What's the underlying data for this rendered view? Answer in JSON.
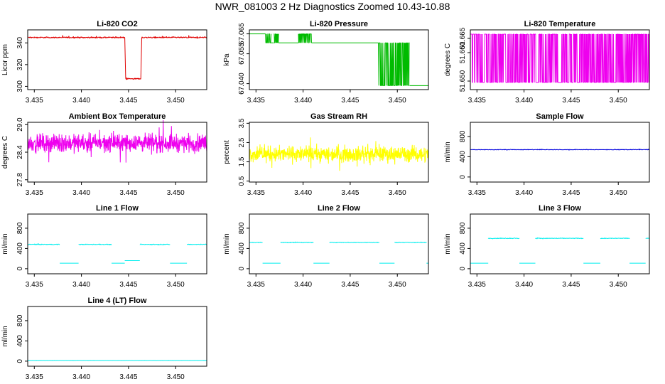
{
  "title": "NWR_081003  2 Hz Diagnostics Zoomed 10.43-10.88",
  "x_range": [
    3.4343,
    3.4533
  ],
  "x_ticks": [
    "3.435",
    "3.440",
    "3.445",
    "3.450"
  ],
  "chart_data": [
    {
      "type": "line",
      "title": "Li-820 CO2",
      "ylabel": "Licor ppm",
      "color": "#e00000",
      "ylim": [
        297,
        352
      ],
      "yticks": [
        300,
        320,
        340
      ],
      "ytick_labels": [
        "300",
        "320",
        "340"
      ],
      "segments": [
        {
          "x": [
            3.4343,
            3.4446
          ],
          "y": 345,
          "noise": 1
        },
        {
          "x": [
            3.4446,
            3.4447
          ],
          "y": 345,
          "to": 307
        },
        {
          "x": [
            3.4447,
            3.4463
          ],
          "y": 307,
          "noise": 1
        },
        {
          "x": [
            3.4463,
            3.4464
          ],
          "y": 307,
          "to": 345
        },
        {
          "x": [
            3.4464,
            3.4533
          ],
          "y": 345,
          "noise": 1
        }
      ]
    },
    {
      "type": "line",
      "title": "Li-820 Pressure",
      "ylabel": "kPa",
      "color": "#00bb00",
      "ylim": [
        67.037,
        67.067
      ],
      "yticks": [
        67.04,
        67.055,
        67.065
      ],
      "ytick_labels": [
        "67.040",
        "67.055",
        "67.065"
      ],
      "segments": [
        {
          "x": [
            3.4343,
            3.4359
          ],
          "y": 67.065
        },
        {
          "x": [
            3.4359,
            3.4366
          ],
          "y": 67.065,
          "alt": 67.0605
        },
        {
          "x": [
            3.4366,
            3.4369
          ],
          "y": 67.0605
        },
        {
          "x": [
            3.4369,
            3.4374
          ],
          "y": 67.065,
          "alt": 67.0605
        },
        {
          "x": [
            3.4374,
            3.4395
          ],
          "y": 67.0605
        },
        {
          "x": [
            3.4395,
            3.4409
          ],
          "y": 67.065,
          "alt": 67.0605
        },
        {
          "x": [
            3.4409,
            3.448
          ],
          "y": 67.0605
        },
        {
          "x": [
            3.448,
            3.4513
          ],
          "y": 67.0605,
          "alt": 67.039
        },
        {
          "x": [
            3.4513,
            3.4533
          ],
          "y": 67.039
        }
      ]
    },
    {
      "type": "line",
      "title": "Li-820 Temperature",
      "ylabel": "degrees C",
      "color": "#ee00ee",
      "ylim": [
        51.647,
        51.668
      ],
      "yticks": [
        51.65,
        51.66,
        51.665
      ],
      "ytick_labels": [
        "51.650",
        "51.660",
        "51.665"
      ],
      "segments": [
        {
          "x": [
            3.4343,
            3.4533
          ],
          "y": 51.6665,
          "alt": 51.6495
        }
      ]
    },
    {
      "type": "line",
      "title": "Ambient Box Temperature",
      "ylabel": "degrees C",
      "color": "#ee00ee",
      "ylim": [
        27.75,
        29.05
      ],
      "yticks": [
        27.8,
        28.4,
        29.0
      ],
      "ytick_labels": [
        "27.8",
        "28.4",
        "29.0"
      ],
      "segments": [
        {
          "x": [
            3.4343,
            3.4533
          ],
          "y": 28.6,
          "noise": 0.28
        }
      ]
    },
    {
      "type": "line",
      "title": "Gas Stream RH",
      "ylabel": "percent",
      "color": "#ffff00",
      "ylim": [
        0.45,
        3.55
      ],
      "yticks": [
        0.5,
        1.5,
        2.5,
        3.5
      ],
      "ytick_labels": [
        "0.5",
        "1.5",
        "2.5",
        "3.5"
      ],
      "segments": [
        {
          "x": [
            3.4343,
            3.4533
          ],
          "y": 1.9,
          "noise": 0.6
        }
      ]
    },
    {
      "type": "line",
      "title": "Sample Flow",
      "ylabel": "ml/min",
      "color": "#0000dd",
      "ylim": [
        -100,
        1080
      ],
      "yticks": [
        0,
        400,
        800
      ],
      "ytick_labels": [
        "0",
        "400",
        "800"
      ],
      "segments": [
        {
          "x": [
            3.4343,
            3.4533
          ],
          "y": 540,
          "noise": 10
        }
      ]
    },
    {
      "type": "line",
      "title": "Line 1 Flow",
      "ylabel": "ml/min",
      "color": "#00eeee",
      "ylim": [
        -100,
        1080
      ],
      "yticks": [
        0,
        400,
        800
      ],
      "ytick_labels": [
        "0",
        "400",
        "800"
      ],
      "segments": [
        {
          "x": [
            3.4343,
            3.4377
          ],
          "y": 480,
          "noise": 12
        },
        {
          "x": [
            3.4377,
            3.4397
          ],
          "y": 110
        },
        {
          "x": [
            3.4397,
            3.4432
          ],
          "y": 480,
          "noise": 12
        },
        {
          "x": [
            3.4432,
            3.4446
          ],
          "y": 110
        },
        {
          "x": [
            3.4446,
            3.4462
          ],
          "y": 160
        },
        {
          "x": [
            3.4462,
            3.4494
          ],
          "y": 480,
          "noise": 12
        },
        {
          "x": [
            3.4494,
            3.4512
          ],
          "y": 110
        },
        {
          "x": [
            3.4512,
            3.4533
          ],
          "y": 480,
          "noise": 12
        }
      ]
    },
    {
      "type": "line",
      "title": "Line 2 Flow",
      "ylabel": "ml/min",
      "color": "#00eeee",
      "ylim": [
        -100,
        1080
      ],
      "yticks": [
        0,
        400,
        800
      ],
      "ytick_labels": [
        "0",
        "400",
        "800"
      ],
      "segments": [
        {
          "x": [
            3.4343,
            3.4357
          ],
          "y": 520,
          "noise": 12
        },
        {
          "x": [
            3.4357,
            3.4376
          ],
          "y": 110
        },
        {
          "x": [
            3.4376,
            3.4411
          ],
          "y": 520,
          "noise": 12
        },
        {
          "x": [
            3.4411,
            3.4428
          ],
          "y": 110
        },
        {
          "x": [
            3.4428,
            3.4481
          ],
          "y": 520,
          "noise": 12
        },
        {
          "x": [
            3.4481,
            3.4497
          ],
          "y": 110
        },
        {
          "x": [
            3.4497,
            3.4531
          ],
          "y": 520,
          "noise": 12
        },
        {
          "x": [
            3.4531,
            3.4533
          ],
          "y": 110
        }
      ]
    },
    {
      "type": "line",
      "title": "Line 3 Flow",
      "ylabel": "ml/min",
      "color": "#00eeee",
      "ylim": [
        -100,
        1080
      ],
      "yticks": [
        0,
        400,
        800
      ],
      "ytick_labels": [
        "0",
        "400",
        "800"
      ],
      "segments": [
        {
          "x": [
            3.4343,
            3.4362
          ],
          "y": 110
        },
        {
          "x": [
            3.4362,
            3.4395
          ],
          "y": 600,
          "noise": 12
        },
        {
          "x": [
            3.4395,
            3.4412
          ],
          "y": 110
        },
        {
          "x": [
            3.4412,
            3.4463
          ],
          "y": 600,
          "noise": 12
        },
        {
          "x": [
            3.4463,
            3.4481
          ],
          "y": 110
        },
        {
          "x": [
            3.4481,
            3.4512
          ],
          "y": 600,
          "noise": 12
        },
        {
          "x": [
            3.4512,
            3.4529
          ],
          "y": 110
        },
        {
          "x": [
            3.4529,
            3.4533
          ],
          "y": 600,
          "noise": 12
        }
      ]
    },
    {
      "type": "line",
      "title": "Line 4 (LT) Flow",
      "ylabel": "ml/min",
      "color": "#00eeee",
      "ylim": [
        -100,
        1080
      ],
      "yticks": [
        0,
        400,
        800
      ],
      "ytick_labels": [
        "0",
        "400",
        "800"
      ],
      "segments": [
        {
          "x": [
            3.4343,
            3.4533
          ],
          "y": 15,
          "noise": 3
        }
      ]
    }
  ]
}
